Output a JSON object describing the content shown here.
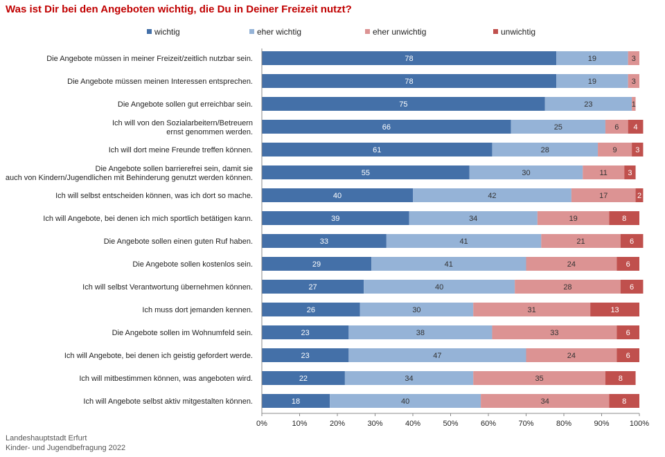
{
  "chart_data": {
    "type": "bar",
    "orientation": "horizontal",
    "stacked": true,
    "title": "Was ist Dir bei den Angeboten wichtig, die Du in Deiner Freizeit nutzt?",
    "legend_position": "top",
    "xlim": [
      0,
      100
    ],
    "x_ticks": [
      "0%",
      "10%",
      "20%",
      "30%",
      "40%",
      "50%",
      "60%",
      "70%",
      "80%",
      "90%",
      "100%"
    ],
    "categories": [
      "Die Angebote müssen in meiner Freizeit/zeitlich nutzbar sein.",
      "Die Angebote müssen meinen Interessen entsprechen.",
      "Die Angebote sollen gut erreichbar sein.",
      "Ich will von den Sozialarbeitern/Betreuern ernst genommen werden.",
      "Ich will dort meine Freunde treffen können.",
      "Die Angebote sollen barrierefrei sein, damit sie auch von Kindern/Jugendlichen mit Behinderung genutzt werden können.",
      "Ich will selbst entscheiden können, was ich dort so mache.",
      "Ich will Angebote, bei denen ich mich sportlich betätigen kann.",
      "Die Angebote sollen einen guten Ruf haben.",
      "Die Angebote sollen kostenlos sein.",
      "Ich will selbst Verantwortung übernehmen können.",
      "Ich muss dort jemanden kennen.",
      "Die Angebote sollen im Wohnumfeld sein.",
      "Ich will Angebote, bei denen ich geistig gefordert werde.",
      "Ich will mitbestimmen können, was angeboten wird.",
      "Ich will Angebote selbst aktiv mitgestalten können."
    ],
    "category_lines": [
      [
        "Die Angebote müssen in meiner Freizeit/zeitlich nutzbar sein."
      ],
      [
        "Die Angebote müssen meinen Interessen entsprechen."
      ],
      [
        "Die Angebote sollen gut erreichbar sein."
      ],
      [
        "Ich will von den Sozialarbeitern/Betreuern",
        "ernst genommen werden."
      ],
      [
        "Ich will dort meine Freunde treffen können."
      ],
      [
        "Die Angebote sollen barrierefrei sein, damit sie",
        "auch von Kindern/Jugendlichen mit Behinderung genutzt werden können."
      ],
      [
        "Ich will selbst entscheiden können, was ich dort so mache."
      ],
      [
        "Ich will Angebote, bei denen ich mich sportlich betätigen kann."
      ],
      [
        "Die Angebote sollen einen guten Ruf haben."
      ],
      [
        "Die Angebote sollen kostenlos sein."
      ],
      [
        "Ich will selbst Verantwortung übernehmen können."
      ],
      [
        "Ich muss dort jemanden kennen."
      ],
      [
        "Die Angebote sollen im Wohnumfeld sein."
      ],
      [
        "Ich will Angebote, bei denen ich geistig gefordert werde."
      ],
      [
        "Ich will mitbestimmen können, was angeboten wird."
      ],
      [
        "Ich will Angebote selbst aktiv mitgestalten können."
      ]
    ],
    "series": [
      {
        "name": "wichtig",
        "color": "#4470a8",
        "label_color": "#ffffff",
        "values": [
          78,
          78,
          75,
          66,
          61,
          55,
          40,
          39,
          33,
          29,
          27,
          26,
          23,
          23,
          22,
          18
        ]
      },
      {
        "name": "eher wichtig",
        "color": "#95b3d7",
        "label_color": "#333333",
        "values": [
          19,
          19,
          23,
          25,
          28,
          30,
          42,
          34,
          41,
          41,
          40,
          30,
          38,
          47,
          34,
          40
        ]
      },
      {
        "name": "eher unwichtig",
        "color": "#dc9393",
        "label_color": "#333333",
        "values": [
          3,
          3,
          1,
          6,
          9,
          11,
          17,
          19,
          21,
          24,
          28,
          31,
          33,
          24,
          35,
          34
        ]
      },
      {
        "name": "unwichtig",
        "color": "#c0504d",
        "label_color": "#ffffff",
        "values": [
          0,
          0,
          0,
          4,
          3,
          3,
          2,
          8,
          6,
          6,
          6,
          13,
          6,
          6,
          8,
          8
        ]
      }
    ],
    "data_labels": [
      [
        "78",
        "19",
        "3",
        ""
      ],
      [
        "78",
        "19",
        "3",
        ""
      ],
      [
        "75",
        "23",
        "1",
        ""
      ],
      [
        "66",
        "25",
        "6",
        "4"
      ],
      [
        "61",
        "28",
        "9",
        "3"
      ],
      [
        "55",
        "30",
        "11",
        "3"
      ],
      [
        "40",
        "42",
        "17",
        "2"
      ],
      [
        "39",
        "34",
        "19",
        "8"
      ],
      [
        "33",
        "41",
        "21",
        "6"
      ],
      [
        "29",
        "41",
        "24",
        "6"
      ],
      [
        "27",
        "40",
        "28",
        "6"
      ],
      [
        "26",
        "30",
        "31",
        "13"
      ],
      [
        "23",
        "38",
        "33",
        "6"
      ],
      [
        "23",
        "47",
        "24",
        "6"
      ],
      [
        "22",
        "34",
        "35",
        "8"
      ],
      [
        "18",
        "40",
        "34",
        "8"
      ]
    ]
  },
  "footer": {
    "line1": "Landeshauptstadt Erfurt",
    "line2": "Kinder- und Jugendbefragung 2022"
  }
}
